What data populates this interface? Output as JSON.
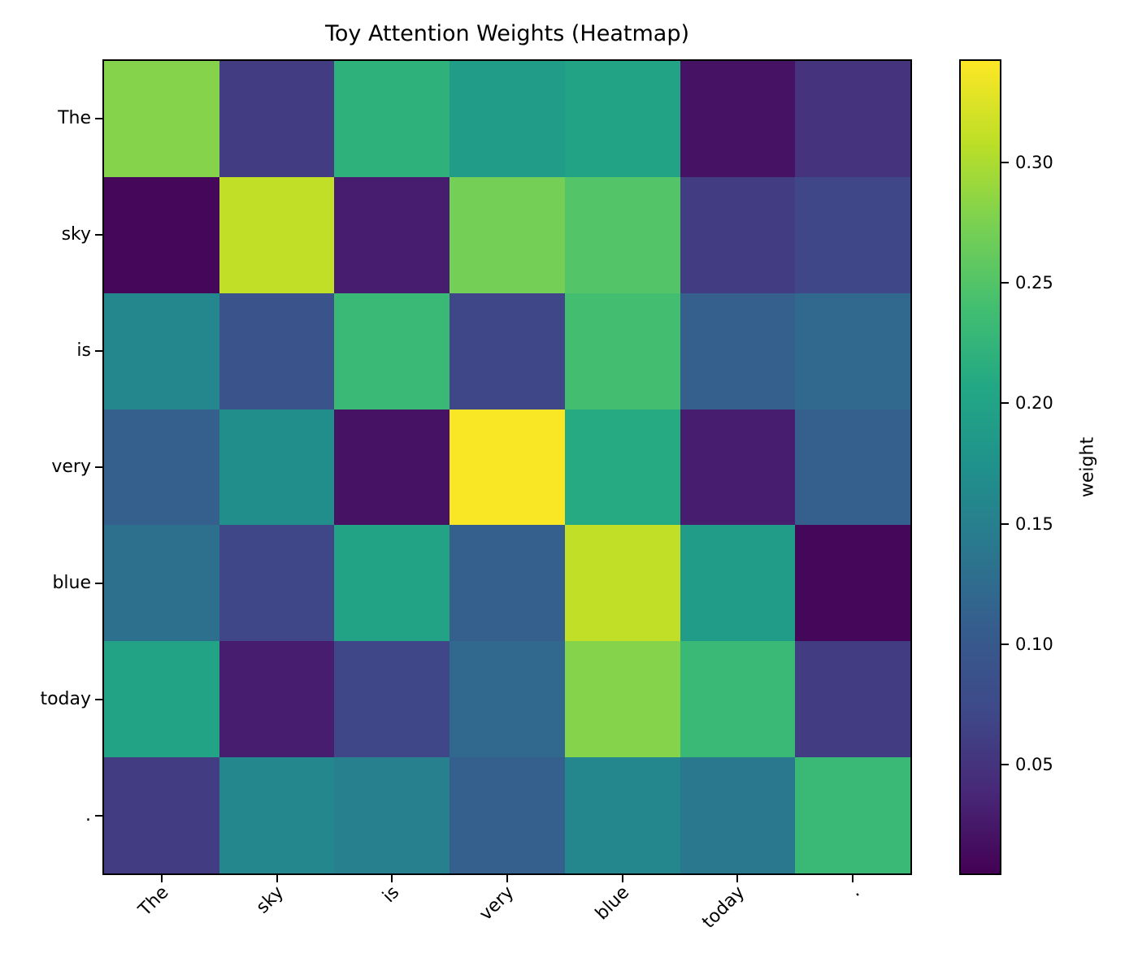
{
  "figure": {
    "title": "Toy Attention Weights (Heatmap)"
  },
  "chart_data": {
    "type": "heatmap",
    "title": "Toy Attention Weights (Heatmap)",
    "x_tokens": [
      "The",
      "sky",
      "is",
      "very",
      "blue",
      "today",
      "."
    ],
    "y_tokens": [
      "The",
      "sky",
      "is",
      "very",
      "blue",
      "today",
      "."
    ],
    "values": [
      [
        0.28,
        0.06,
        0.22,
        0.19,
        0.2,
        0.02,
        0.05
      ],
      [
        0.01,
        0.31,
        0.03,
        0.27,
        0.25,
        0.06,
        0.07
      ],
      [
        0.16,
        0.09,
        0.23,
        0.07,
        0.24,
        0.11,
        0.12
      ],
      [
        0.11,
        0.17,
        0.02,
        0.34,
        0.21,
        0.03,
        0.11
      ],
      [
        0.13,
        0.07,
        0.2,
        0.11,
        0.31,
        0.19,
        0.01
      ],
      [
        0.2,
        0.03,
        0.07,
        0.12,
        0.28,
        0.23,
        0.06
      ],
      [
        0.06,
        0.16,
        0.15,
        0.11,
        0.16,
        0.14,
        0.23
      ]
    ],
    "vmin": 0.005,
    "vmax": 0.342,
    "colormap": "viridis",
    "grid": false,
    "x_tick_rotation_deg": 45,
    "colorbar": {
      "label": "weight",
      "ticks": [
        "0.05",
        "0.10",
        "0.15",
        "0.20",
        "0.25",
        "0.30"
      ],
      "position": "right"
    }
  },
  "colors": {
    "background": "#ffffff",
    "text": "#000000",
    "axes_edge": "#000000",
    "viridis_anchors": [
      "#440154",
      "#482878",
      "#3E4989",
      "#365C8D",
      "#2A788E",
      "#20918C",
      "#22A884",
      "#44BF70",
      "#7AD151",
      "#BDDF26",
      "#FDE725"
    ]
  }
}
